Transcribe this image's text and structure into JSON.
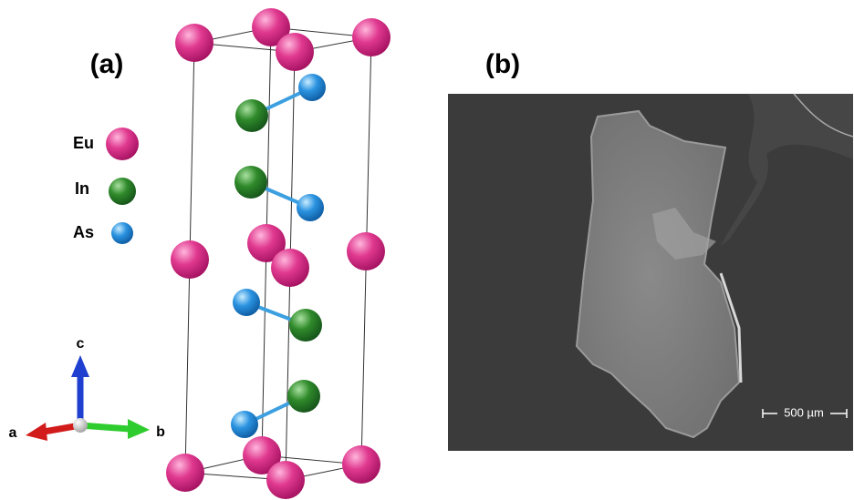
{
  "panels": [
    {
      "label": "(a)"
    },
    {
      "label": "(b)"
    }
  ],
  "legend": [
    {
      "label": "Eu"
    },
    {
      "label": "In"
    },
    {
      "label": "As"
    }
  ],
  "axes": {
    "a": "a",
    "b": "b",
    "c": "c"
  },
  "scale_bar": {
    "label": "500 µm"
  }
}
